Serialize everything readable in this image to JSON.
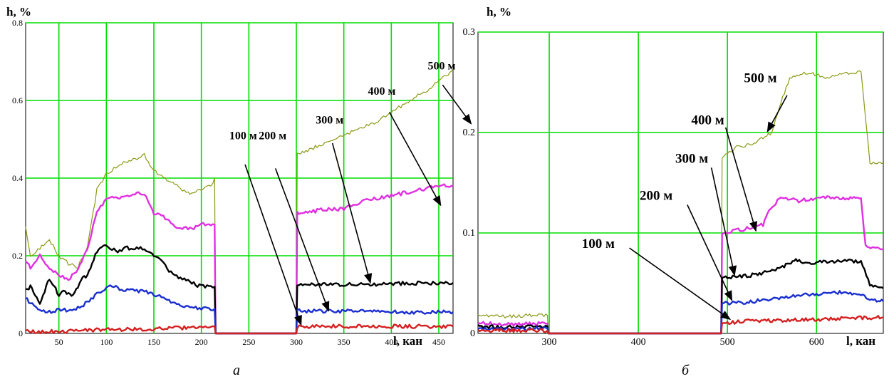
{
  "chart_data": [
    {
      "type": "line",
      "panel_label": "а",
      "ylabel": "h, %",
      "xlabel": "l, кан",
      "xlim": [
        15,
        465
      ],
      "ylim": [
        0,
        0.8
      ],
      "xticks": [
        50,
        100,
        150,
        200,
        250,
        300,
        350,
        400,
        450
      ],
      "yticks": [
        0,
        0.2,
        0.4,
        0.6,
        0.8
      ],
      "ytick_labels": [
        "0",
        "0.2",
        "0.4",
        "0.6",
        "0.8"
      ],
      "grid": true,
      "series": [
        {
          "name": "500 м",
          "color": "#8a9a14",
          "width": 1.2,
          "x": [
            15,
            20,
            30,
            40,
            50,
            60,
            70,
            80,
            90,
            100,
            110,
            120,
            130,
            140,
            150,
            160,
            170,
            180,
            190,
            200,
            210,
            214,
            215,
            300,
            301,
            310,
            320,
            340,
            360,
            380,
            400,
            420,
            440,
            460,
            465
          ],
          "y": [
            0.27,
            0.2,
            0.22,
            0.24,
            0.2,
            0.18,
            0.17,
            0.22,
            0.37,
            0.41,
            0.43,
            0.44,
            0.45,
            0.46,
            0.42,
            0.4,
            0.39,
            0.37,
            0.36,
            0.37,
            0.38,
            0.4,
            0,
            0,
            0.46,
            0.47,
            0.48,
            0.5,
            0.52,
            0.54,
            0.57,
            0.6,
            0.63,
            0.67,
            0.68
          ]
        },
        {
          "name": "400 м",
          "color": "#e030e0",
          "width": 2.4,
          "x": [
            15,
            20,
            30,
            40,
            50,
            60,
            70,
            80,
            90,
            100,
            110,
            120,
            130,
            140,
            150,
            160,
            170,
            180,
            190,
            200,
            210,
            214,
            215,
            300,
            301,
            310,
            330,
            350,
            370,
            390,
            410,
            430,
            450,
            465
          ],
          "y": [
            0.19,
            0.17,
            0.2,
            0.17,
            0.15,
            0.14,
            0.16,
            0.22,
            0.31,
            0.35,
            0.35,
            0.35,
            0.36,
            0.36,
            0.31,
            0.3,
            0.28,
            0.27,
            0.27,
            0.28,
            0.28,
            0.28,
            0,
            0,
            0.31,
            0.31,
            0.32,
            0.32,
            0.34,
            0.35,
            0.36,
            0.37,
            0.38,
            0.38
          ]
        },
        {
          "name": "300 м",
          "color": "#000000",
          "width": 2.4,
          "x": [
            15,
            20,
            25,
            30,
            35,
            40,
            45,
            50,
            55,
            60,
            65,
            70,
            75,
            80,
            85,
            90,
            95,
            100,
            110,
            120,
            130,
            140,
            150,
            160,
            170,
            180,
            190,
            200,
            210,
            214,
            215,
            300,
            301,
            320,
            340,
            360,
            380,
            400,
            420,
            440,
            465
          ],
          "y": [
            0.11,
            0.12,
            0.1,
            0.08,
            0.11,
            0.14,
            0.12,
            0.1,
            0.11,
            0.1,
            0.1,
            0.12,
            0.14,
            0.15,
            0.18,
            0.21,
            0.22,
            0.23,
            0.21,
            0.22,
            0.22,
            0.22,
            0.2,
            0.18,
            0.15,
            0.14,
            0.13,
            0.12,
            0.12,
            0.12,
            0,
            0,
            0.125,
            0.125,
            0.126,
            0.127,
            0.127,
            0.128,
            0.129,
            0.13,
            0.13
          ]
        },
        {
          "name": "200 м",
          "color": "#1a2ed0",
          "width": 2.4,
          "x": [
            15,
            20,
            30,
            40,
            50,
            60,
            70,
            80,
            90,
            100,
            110,
            120,
            130,
            140,
            150,
            160,
            170,
            180,
            190,
            200,
            210,
            214,
            215,
            300,
            301,
            350,
            400,
            465
          ],
          "y": [
            0.09,
            0.08,
            0.06,
            0.055,
            0.06,
            0.06,
            0.065,
            0.08,
            0.1,
            0.12,
            0.12,
            0.11,
            0.11,
            0.11,
            0.1,
            0.09,
            0.08,
            0.07,
            0.066,
            0.064,
            0.063,
            0.063,
            0,
            0,
            0.058,
            0.057,
            0.055,
            0.055
          ]
        },
        {
          "name": "100 м",
          "color": "#d42020",
          "width": 2.4,
          "x": [
            15,
            60,
            80,
            100,
            150,
            200,
            214,
            215,
            300,
            301,
            465
          ],
          "y": [
            0.005,
            0.005,
            0.008,
            0.01,
            0.012,
            0.016,
            0.018,
            0,
            0,
            0.018,
            0.018
          ]
        }
      ],
      "annotations": [
        {
          "text": "100 м",
          "x": 244,
          "y": 0.5
        },
        {
          "text": "200 м",
          "x": 275,
          "y": 0.5
        },
        {
          "text": "300 м",
          "x": 335,
          "y": 0.54
        },
        {
          "text": "400 м",
          "x": 390,
          "y": 0.615
        },
        {
          "text": "500 м",
          "x": 453,
          "y": 0.68
        }
      ],
      "arrows": [
        {
          "from": [
            246,
            0.435
          ],
          "to": [
            305,
            0.022
          ]
        },
        {
          "from": [
            278,
            0.425
          ],
          "to": [
            334,
            0.058
          ]
        },
        {
          "from": [
            338,
            0.49
          ],
          "to": [
            378,
            0.13
          ]
        },
        {
          "from": [
            398,
            0.57
          ],
          "to": [
            452,
            0.33
          ]
        },
        {
          "from": [
            454,
            0.64
          ],
          "to": [
            484,
            0.54
          ]
        }
      ]
    },
    {
      "type": "line",
      "panel_label": "б",
      "ylabel": "h, %",
      "xlabel": "l, кан",
      "xlim": [
        220,
        675
      ],
      "ylim": [
        0,
        0.3
      ],
      "xticks": [
        300,
        400,
        500,
        600
      ],
      "yticks": [
        0,
        0.1,
        0.2,
        0.3
      ],
      "ytick_labels": [
        "0",
        "0.1",
        "0.2",
        "0.3"
      ],
      "grid": true,
      "series": [
        {
          "name": "500 м",
          "color": "#8a9a14",
          "width": 1.2,
          "x": [
            220,
            250,
            280,
            298,
            299,
            493,
            494,
            510,
            530,
            550,
            560,
            570,
            590,
            610,
            640,
            650,
            660,
            675
          ],
          "y": [
            0.018,
            0.017,
            0.018,
            0.018,
            0,
            0,
            0.175,
            0.185,
            0.19,
            0.2,
            0.23,
            0.255,
            0.26,
            0.255,
            0.26,
            0.26,
            0.17,
            0.17
          ]
        },
        {
          "name": "400 м",
          "color": "#e030e0",
          "width": 2.4,
          "x": [
            220,
            260,
            298,
            299,
            493,
            494,
            520,
            540,
            545,
            560,
            580,
            600,
            650,
            655,
            670,
            675
          ],
          "y": [
            0.01,
            0.009,
            0.01,
            0,
            0,
            0.1,
            0.104,
            0.108,
            0.12,
            0.136,
            0.132,
            0.135,
            0.135,
            0.087,
            0.085,
            0.084
          ]
        },
        {
          "name": "300 м",
          "color": "#000000",
          "width": 2.4,
          "x": [
            220,
            260,
            298,
            299,
            493,
            494,
            520,
            540,
            560,
            575,
            590,
            620,
            650,
            660,
            675
          ],
          "y": [
            0.007,
            0.006,
            0.007,
            0,
            0,
            0.056,
            0.057,
            0.06,
            0.065,
            0.073,
            0.07,
            0.072,
            0.072,
            0.048,
            0.045
          ]
        },
        {
          "name": "200 м",
          "color": "#1a2ed0",
          "width": 2.4,
          "x": [
            220,
            260,
            298,
            299,
            493,
            494,
            520,
            540,
            560,
            580,
            610,
            630,
            650,
            660,
            675
          ],
          "y": [
            0.005,
            0.004,
            0.005,
            0,
            0,
            0.03,
            0.031,
            0.033,
            0.036,
            0.038,
            0.04,
            0.041,
            0.039,
            0.034,
            0.032
          ]
        },
        {
          "name": "100 м",
          "color": "#d42020",
          "width": 2.4,
          "x": [
            220,
            298,
            299,
            493,
            494,
            520,
            560,
            600,
            640,
            675
          ],
          "y": [
            0.003,
            0.003,
            0,
            0,
            0.01,
            0.012,
            0.013,
            0.014,
            0.015,
            0.016
          ]
        }
      ],
      "annotations": [
        {
          "text": "100 м",
          "x": 355,
          "y": 0.085
        },
        {
          "text": "200 м",
          "x": 420,
          "y": 0.133
        },
        {
          "text": "300 м",
          "x": 460,
          "y": 0.17
        },
        {
          "text": "400 м",
          "x": 478,
          "y": 0.208
        },
        {
          "text": "500 м",
          "x": 537,
          "y": 0.25
        }
      ],
      "arrows": [
        {
          "from": [
            390,
            0.085
          ],
          "to": [
            503,
            0.014
          ]
        },
        {
          "from": [
            455,
            0.128
          ],
          "to": [
            505,
            0.033
          ]
        },
        {
          "from": [
            482,
            0.165
          ],
          "to": [
            508,
            0.058
          ]
        },
        {
          "from": [
            498,
            0.205
          ],
          "to": [
            532,
            0.102
          ]
        },
        {
          "from": [
            567,
            0.237
          ],
          "to": [
            545,
            0.201
          ]
        }
      ]
    }
  ]
}
